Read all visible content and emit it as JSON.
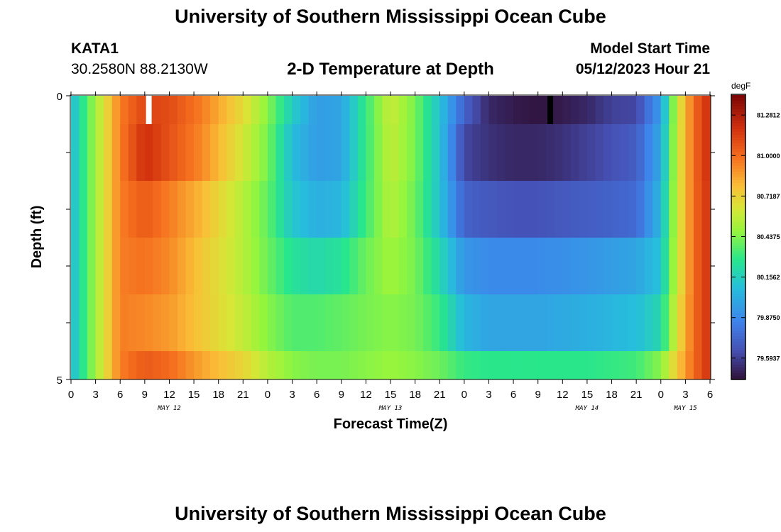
{
  "page": {
    "title": "University of Southern Mississippi Ocean Cube",
    "station": "KATA1",
    "coords": "30.2580N  88.2130W",
    "plot_title": "2-D Temperature at Depth",
    "start_label": "Model Start Time",
    "start_value": "05/12/2023 Hour 21",
    "bottom_title": "University of Southern Mississippi Ocean Cube"
  },
  "chart_data": {
    "type": "heatmap",
    "title": "2-D Temperature at Depth",
    "xlabel": "Forecast Time(Z)",
    "ylabel": "Depth (ft)",
    "x_tick_labels": [
      "0",
      "3",
      "6",
      "9",
      "12",
      "15",
      "18",
      "21",
      "0",
      "3",
      "6",
      "9",
      "12",
      "15",
      "18",
      "21",
      "0",
      "3",
      "6",
      "9",
      "12",
      "15",
      "18",
      "21",
      "0",
      "3",
      "6"
    ],
    "date_labels": [
      "MAY 12",
      "MAY 13",
      "MAY 14",
      "MAY 15"
    ],
    "y_tick_labels": [
      "0",
      "5"
    ],
    "y_range": [
      0,
      5
    ],
    "colorbar": {
      "unit": "degF",
      "min": 79.45,
      "max": 81.42,
      "tick_labels": [
        "81.2812",
        "81.0000",
        "80.7187",
        "80.4375",
        "80.1562",
        "79.8750",
        "79.5937"
      ],
      "tick_values": [
        81.2812,
        81.0,
        80.7187,
        80.4375,
        80.1562,
        79.875,
        79.5937
      ]
    },
    "missing_markers": [
      {
        "hour": 9.5,
        "color": "#ffffff"
      },
      {
        "hour": 58.5,
        "color": "#000000"
      }
    ],
    "time_hours": [
      0,
      6,
      9,
      12,
      16,
      21,
      24,
      27,
      30,
      33,
      36,
      39,
      42,
      45,
      48,
      51,
      54,
      57,
      60,
      63,
      66,
      69,
      72,
      74,
      76,
      78
    ],
    "rows": [
      {
        "depth": "0",
        "values": [
          80.06,
          80.95,
          81.12,
          81.1,
          80.95,
          80.68,
          80.45,
          80.15,
          79.95,
          79.98,
          80.3,
          80.6,
          80.42,
          80.1,
          79.72,
          79.52,
          79.48,
          79.46,
          79.48,
          79.52,
          79.6,
          79.62,
          79.95,
          80.6,
          81.0,
          81.22
        ]
      },
      {
        "depth": "0.5",
        "values": [
          80.06,
          80.95,
          81.2,
          81.08,
          80.92,
          80.62,
          80.42,
          80.08,
          79.95,
          79.98,
          80.3,
          80.58,
          80.42,
          80.1,
          79.62,
          79.55,
          79.52,
          79.52,
          79.55,
          79.6,
          79.65,
          79.7,
          80.0,
          80.6,
          81.0,
          81.22
        ]
      },
      {
        "depth": "1.5",
        "values": [
          80.06,
          80.95,
          81.05,
          80.95,
          80.8,
          80.55,
          80.38,
          80.12,
          80.02,
          80.05,
          80.32,
          80.55,
          80.4,
          80.1,
          79.72,
          79.68,
          79.66,
          79.66,
          79.68,
          79.7,
          79.72,
          79.75,
          80.05,
          80.6,
          81.0,
          81.2
        ]
      },
      {
        "depth": "2.5",
        "values": [
          80.06,
          80.95,
          80.98,
          80.92,
          80.75,
          80.55,
          80.4,
          80.25,
          80.2,
          80.25,
          80.4,
          80.5,
          80.42,
          80.2,
          79.92,
          79.88,
          79.88,
          79.88,
          79.9,
          79.92,
          79.95,
          79.98,
          80.1,
          80.6,
          81.0,
          81.2
        ]
      },
      {
        "depth": "3.5",
        "values": [
          80.06,
          80.95,
          80.92,
          80.88,
          80.75,
          80.58,
          80.45,
          80.35,
          80.35,
          80.38,
          80.42,
          80.45,
          80.42,
          80.3,
          80.05,
          79.98,
          79.98,
          79.98,
          80.0,
          80.02,
          80.05,
          80.08,
          80.2,
          80.65,
          81.0,
          81.2
        ]
      },
      {
        "depth": "4.5",
        "values": [
          80.06,
          80.95,
          81.05,
          81.0,
          80.85,
          80.7,
          80.55,
          80.45,
          80.42,
          80.42,
          80.45,
          80.48,
          80.45,
          80.4,
          80.3,
          80.28,
          80.28,
          80.28,
          80.28,
          80.28,
          80.3,
          80.32,
          80.45,
          80.75,
          81.0,
          81.2
        ]
      }
    ]
  }
}
